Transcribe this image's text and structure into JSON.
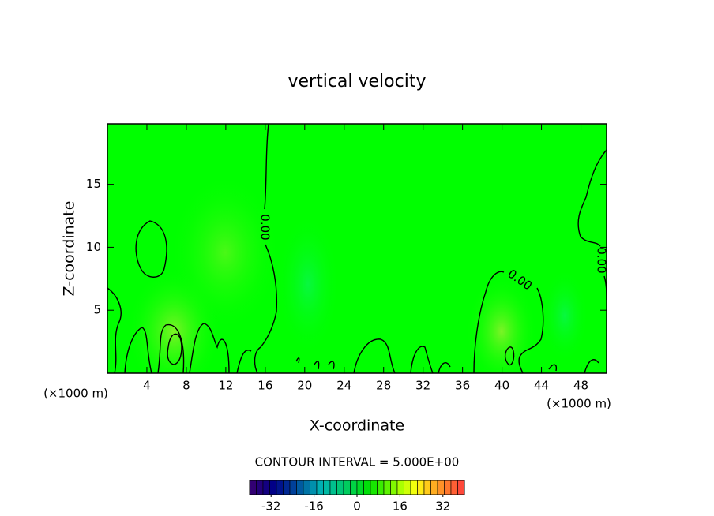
{
  "chart_data": {
    "type": "contour",
    "title": "vertical velocity",
    "x_label": "X-coordinate",
    "y_label": "Z-coordinate",
    "x_unit": "(×1000 m)",
    "y_unit": "(×1000 m)",
    "xlim": [
      0,
      50.6
    ],
    "xticks": [
      4,
      8,
      12,
      16,
      20,
      24,
      28,
      32,
      36,
      40,
      44,
      48
    ],
    "ylim": [
      0,
      19.8
    ],
    "yticks": [
      5,
      10,
      15
    ],
    "contour_level": {
      "value": 0,
      "label": "0.00"
    },
    "contour_interval_text": "CONTOUR INTERVAL = 5.000E+00",
    "colorbar": {
      "lim": [
        -40,
        40
      ],
      "ticks": [
        -32,
        -16,
        0,
        16,
        32
      ]
    }
  }
}
